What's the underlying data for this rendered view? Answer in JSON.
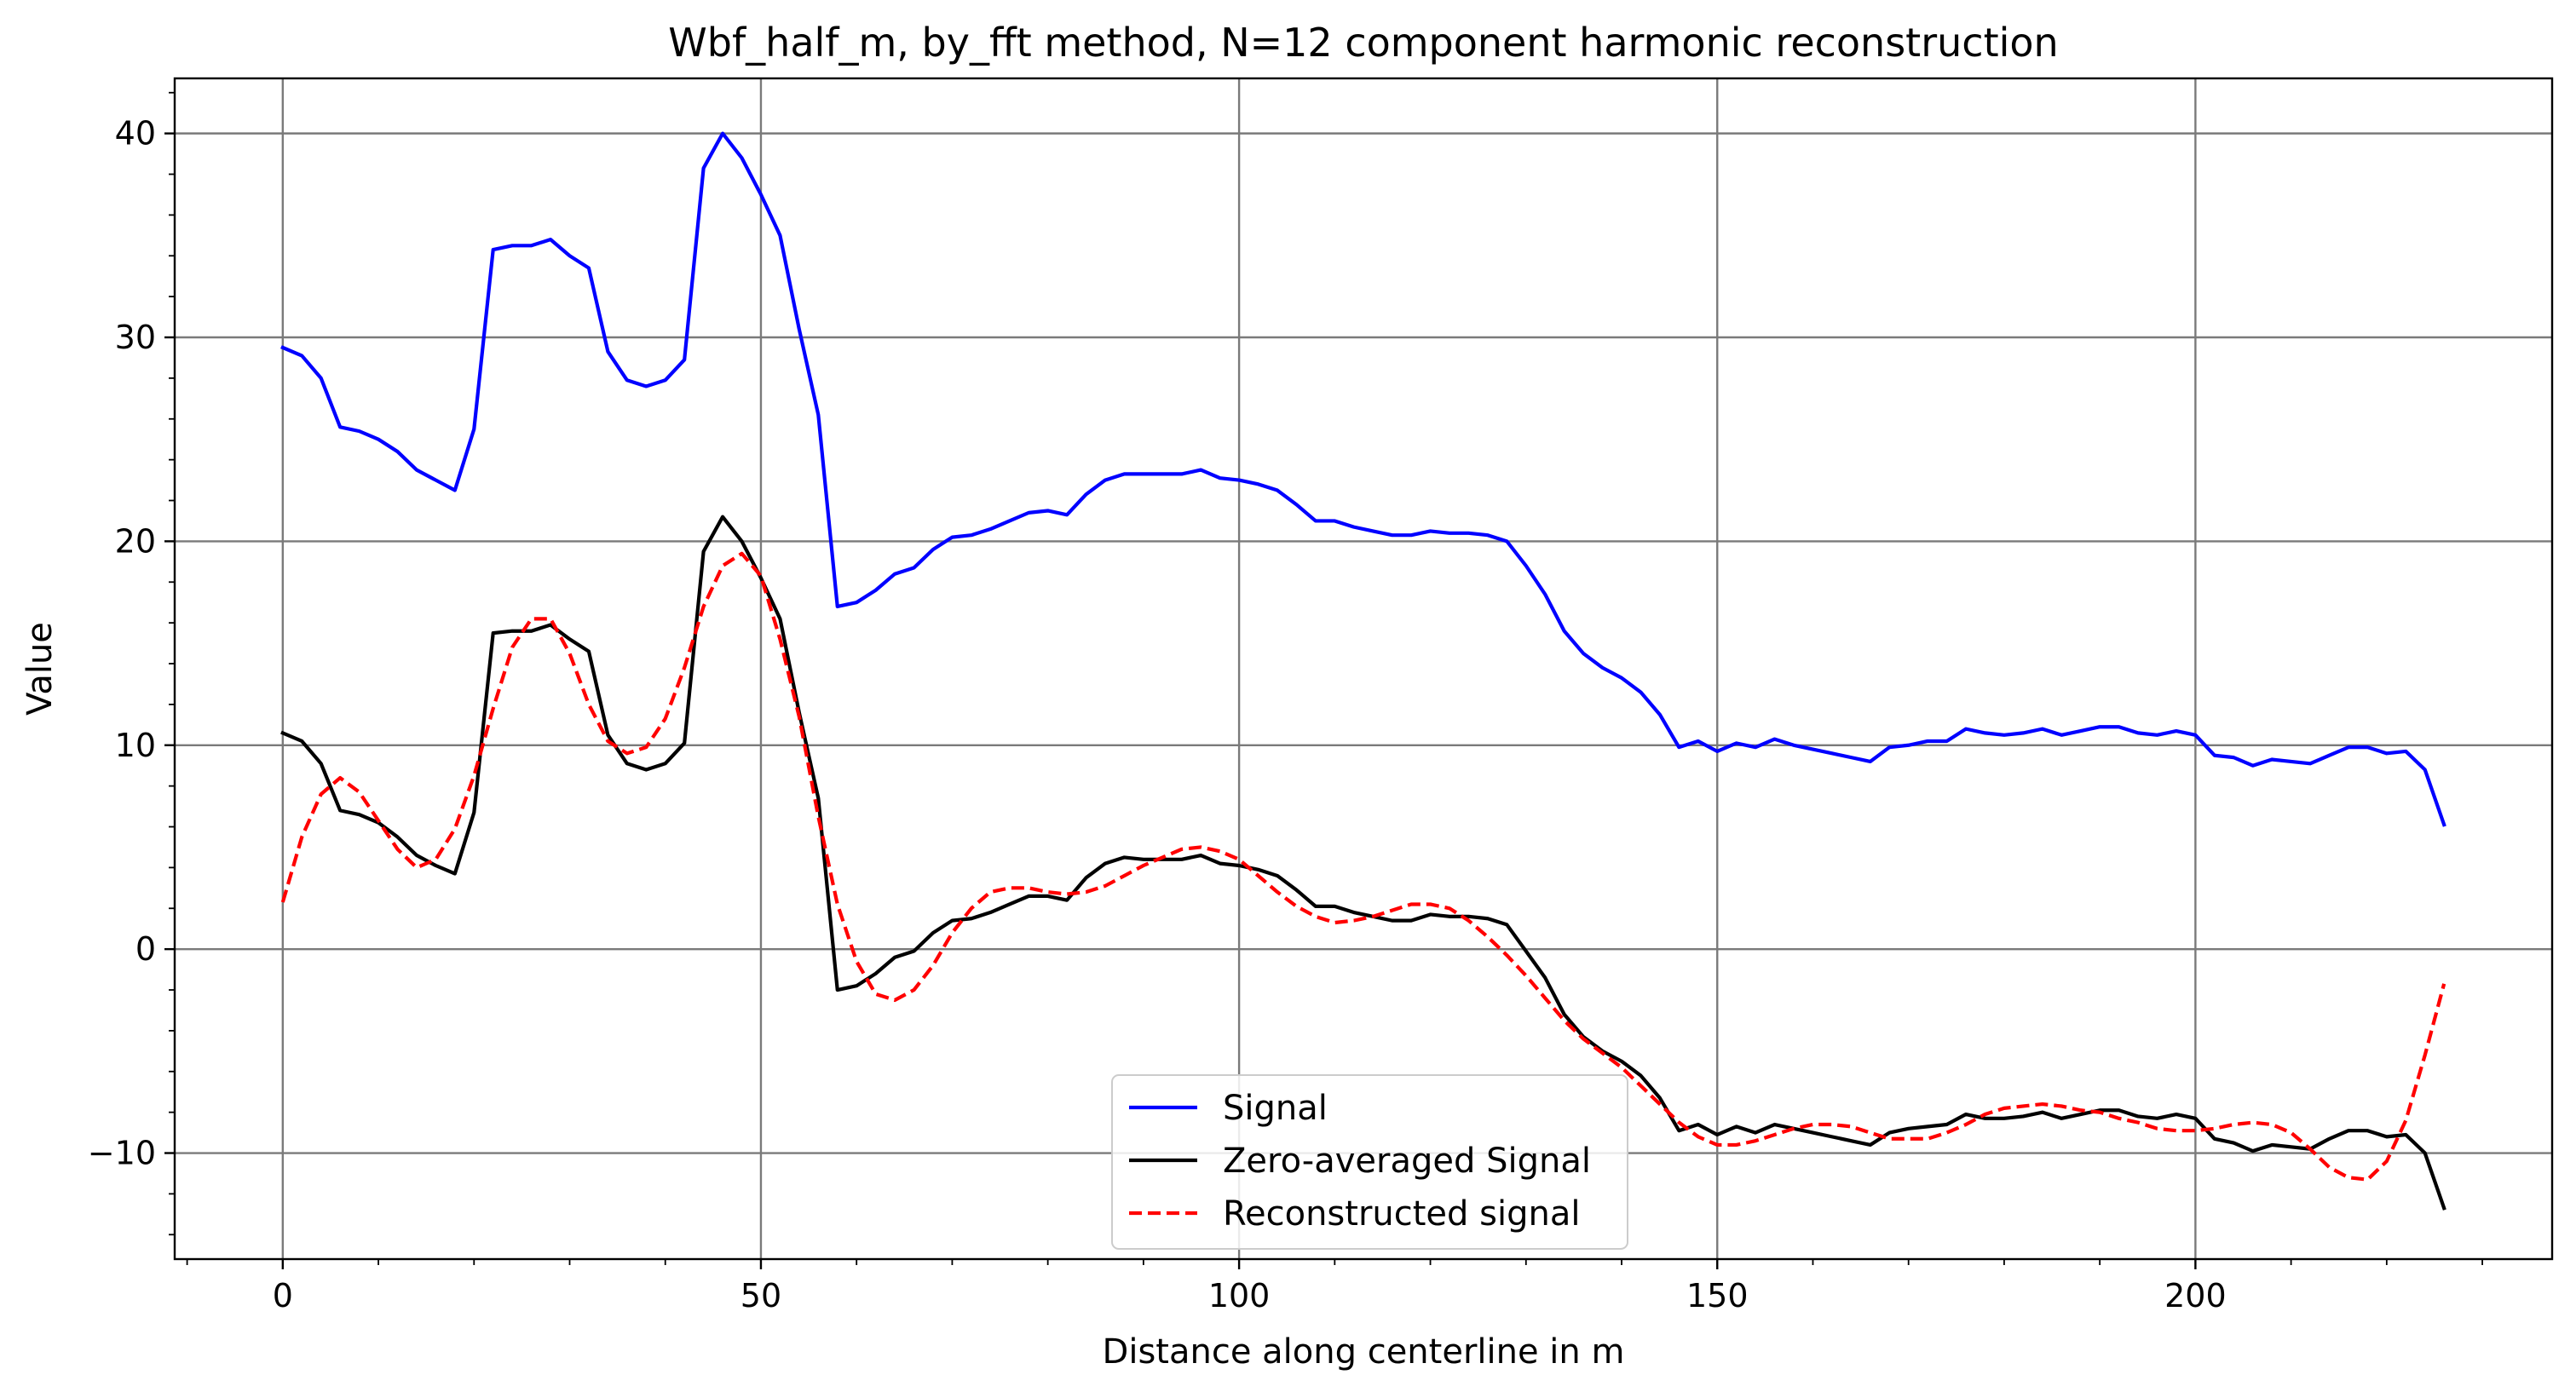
{
  "chart_data": {
    "type": "line",
    "title": "Wbf_half_m, by_fft method, N=12 component harmonic reconstruction",
    "xlabel": "Distance along centerline in m",
    "ylabel": "Value",
    "xlim": [
      -11.3,
      237.3
    ],
    "ylim": [
      -15.2,
      42.7
    ],
    "x_ticks": [
      0,
      50,
      100,
      150,
      200
    ],
    "x_tick_labels": [
      "0",
      "50",
      "100",
      "150",
      "200"
    ],
    "y_ticks": [
      -10,
      0,
      10,
      20,
      30,
      40
    ],
    "y_tick_labels": [
      "−10",
      "0",
      "10",
      "20",
      "30",
      "40"
    ],
    "x_minor_step": 10,
    "y_minor_step": 2,
    "grid": true,
    "legend_position": "lower-center",
    "series": [
      {
        "name": "Signal",
        "color": "#0000ff",
        "dash": "solid",
        "x": [
          0,
          2,
          4,
          6,
          8,
          10,
          12,
          14,
          16,
          18,
          20,
          22,
          24,
          26,
          28,
          30,
          32,
          34,
          36,
          38,
          40,
          42,
          44,
          46,
          48,
          50,
          52,
          54,
          56,
          58,
          60,
          62,
          64,
          66,
          68,
          70,
          72,
          74,
          76,
          78,
          80,
          82,
          84,
          86,
          88,
          90,
          92,
          94,
          96,
          98,
          100,
          102,
          104,
          106,
          108,
          110,
          112,
          114,
          116,
          118,
          120,
          122,
          124,
          126,
          128,
          130,
          132,
          134,
          136,
          138,
          140,
          142,
          144,
          146,
          148,
          150,
          152,
          154,
          156,
          158,
          160,
          162,
          164,
          166,
          168,
          170,
          172,
          174,
          176,
          178,
          180,
          182,
          184,
          186,
          188,
          190,
          192,
          194,
          196,
          198,
          200,
          202,
          204,
          206,
          208,
          210,
          212,
          214,
          216,
          218,
          220,
          222,
          224,
          226
        ],
        "y": [
          29.5,
          29.1,
          28.0,
          25.6,
          25.4,
          25.0,
          24.4,
          23.5,
          23.0,
          22.5,
          25.5,
          34.3,
          34.5,
          34.5,
          34.8,
          34.0,
          33.4,
          29.3,
          27.9,
          27.6,
          27.9,
          28.9,
          38.3,
          40.0,
          38.8,
          37.0,
          35.0,
          30.4,
          26.2,
          16.8,
          17.0,
          17.6,
          18.4,
          18.7,
          19.6,
          20.2,
          20.3,
          20.6,
          21.0,
          21.4,
          21.5,
          21.3,
          22.3,
          23.0,
          23.3,
          23.3,
          23.3,
          23.3,
          23.5,
          23.1,
          23.0,
          22.8,
          22.5,
          21.8,
          21.0,
          21.0,
          20.7,
          20.5,
          20.3,
          20.3,
          20.5,
          20.4,
          20.4,
          20.3,
          20.0,
          18.8,
          17.4,
          15.6,
          14.5,
          13.8,
          13.3,
          12.6,
          11.5,
          9.9,
          10.2,
          9.7,
          10.1,
          9.9,
          10.3,
          10.0,
          9.8,
          9.6,
          9.4,
          9.2,
          9.9,
          10.0,
          10.2,
          10.2,
          10.8,
          10.6,
          10.5,
          10.6,
          10.8,
          10.5,
          10.7,
          10.9,
          10.9,
          10.6,
          10.5,
          10.7,
          10.5,
          9.5,
          9.4,
          9.0,
          9.3,
          9.2,
          9.1,
          9.5,
          9.9,
          9.9,
          9.6,
          9.7,
          8.8,
          6.1
        ]
      },
      {
        "name": "Zero-averaged Signal",
        "color": "#000000",
        "dash": "solid",
        "x": [
          0,
          2,
          4,
          6,
          8,
          10,
          12,
          14,
          16,
          18,
          20,
          22,
          24,
          26,
          28,
          30,
          32,
          34,
          36,
          38,
          40,
          42,
          44,
          46,
          48,
          50,
          52,
          54,
          56,
          58,
          60,
          62,
          64,
          66,
          68,
          70,
          72,
          74,
          76,
          78,
          80,
          82,
          84,
          86,
          88,
          90,
          92,
          94,
          96,
          98,
          100,
          102,
          104,
          106,
          108,
          110,
          112,
          114,
          116,
          118,
          120,
          122,
          124,
          126,
          128,
          130,
          132,
          134,
          136,
          138,
          140,
          142,
          144,
          146,
          148,
          150,
          152,
          154,
          156,
          158,
          160,
          162,
          164,
          166,
          168,
          170,
          172,
          174,
          176,
          178,
          180,
          182,
          184,
          186,
          188,
          190,
          192,
          194,
          196,
          198,
          200,
          202,
          204,
          206,
          208,
          210,
          212,
          214,
          216,
          218,
          220,
          222,
          224,
          226
        ],
        "y": [
          10.6,
          10.2,
          9.1,
          6.8,
          6.6,
          6.2,
          5.5,
          4.6,
          4.1,
          3.7,
          6.7,
          15.5,
          15.6,
          15.6,
          15.9,
          15.2,
          14.6,
          10.5,
          9.1,
          8.8,
          9.1,
          10.1,
          19.5,
          21.2,
          20.0,
          18.2,
          16.2,
          11.6,
          7.4,
          -2.0,
          -1.8,
          -1.2,
          -0.4,
          -0.1,
          0.8,
          1.4,
          1.5,
          1.8,
          2.2,
          2.6,
          2.6,
          2.4,
          3.5,
          4.2,
          4.5,
          4.4,
          4.4,
          4.4,
          4.6,
          4.2,
          4.1,
          3.9,
          3.6,
          2.9,
          2.1,
          2.1,
          1.8,
          1.6,
          1.4,
          1.4,
          1.7,
          1.6,
          1.6,
          1.5,
          1.2,
          -0.1,
          -1.4,
          -3.2,
          -4.3,
          -5.0,
          -5.5,
          -6.2,
          -7.3,
          -8.9,
          -8.6,
          -9.1,
          -8.7,
          -9.0,
          -8.6,
          -8.8,
          -9.0,
          -9.2,
          -9.4,
          -9.6,
          -9.0,
          -8.8,
          -8.7,
          -8.6,
          -8.1,
          -8.3,
          -8.3,
          -8.2,
          -8.0,
          -8.3,
          -8.1,
          -7.9,
          -7.9,
          -8.2,
          -8.3,
          -8.1,
          -8.3,
          -9.3,
          -9.5,
          -9.9,
          -9.6,
          -9.7,
          -9.8,
          -9.3,
          -8.9,
          -8.9,
          -9.2,
          -9.1,
          -10.0,
          -12.7
        ]
      },
      {
        "name": "Reconstructed signal",
        "color": "#ff0000",
        "dash": "dashed",
        "x": [
          0,
          2,
          4,
          6,
          8,
          10,
          12,
          14,
          16,
          18,
          20,
          22,
          24,
          26,
          28,
          30,
          32,
          34,
          36,
          38,
          40,
          42,
          44,
          46,
          48,
          50,
          52,
          54,
          56,
          58,
          60,
          62,
          64,
          66,
          68,
          70,
          72,
          74,
          76,
          78,
          80,
          82,
          84,
          86,
          88,
          90,
          92,
          94,
          96,
          98,
          100,
          102,
          104,
          106,
          108,
          110,
          112,
          114,
          116,
          118,
          120,
          122,
          124,
          126,
          128,
          130,
          132,
          134,
          136,
          138,
          140,
          142,
          144,
          146,
          148,
          150,
          152,
          154,
          156,
          158,
          160,
          162,
          164,
          166,
          168,
          170,
          172,
          174,
          176,
          178,
          180,
          182,
          184,
          186,
          188,
          190,
          192,
          194,
          196,
          198,
          200,
          202,
          204,
          206,
          208,
          210,
          212,
          214,
          216,
          218,
          220,
          222,
          224,
          226
        ],
        "y": [
          2.3,
          5.5,
          7.6,
          8.4,
          7.7,
          6.3,
          4.9,
          4.0,
          4.4,
          5.9,
          8.5,
          11.8,
          14.8,
          16.2,
          16.2,
          14.5,
          12.0,
          10.2,
          9.6,
          9.9,
          11.3,
          13.8,
          16.8,
          18.8,
          19.4,
          18.3,
          15.2,
          11.4,
          6.5,
          2.2,
          -0.6,
          -2.2,
          -2.5,
          -2.0,
          -0.8,
          0.8,
          2.0,
          2.8,
          3.0,
          3.0,
          2.8,
          2.7,
          2.8,
          3.1,
          3.6,
          4.1,
          4.5,
          4.9,
          5.0,
          4.8,
          4.4,
          3.6,
          2.8,
          2.1,
          1.6,
          1.3,
          1.4,
          1.6,
          1.9,
          2.2,
          2.2,
          2.0,
          1.4,
          0.6,
          -0.3,
          -1.3,
          -2.4,
          -3.5,
          -4.4,
          -5.1,
          -5.8,
          -6.7,
          -7.6,
          -8.5,
          -9.2,
          -9.6,
          -9.6,
          -9.4,
          -9.1,
          -8.8,
          -8.6,
          -8.6,
          -8.7,
          -9.0,
          -9.3,
          -9.3,
          -9.3,
          -9.0,
          -8.6,
          -8.1,
          -7.8,
          -7.7,
          -7.6,
          -7.7,
          -7.9,
          -8.0,
          -8.3,
          -8.5,
          -8.8,
          -8.9,
          -8.9,
          -8.8,
          -8.6,
          -8.5,
          -8.6,
          -9.0,
          -9.8,
          -10.7,
          -11.2,
          -11.3,
          -10.4,
          -8.4,
          -5.2,
          -1.7
        ]
      }
    ]
  }
}
